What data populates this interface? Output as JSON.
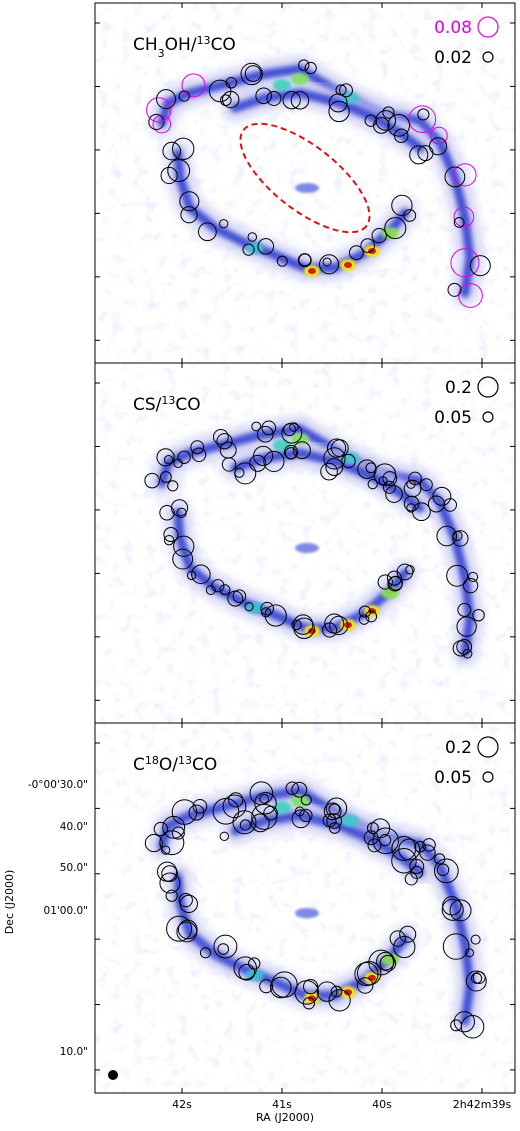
{
  "chart_data": {
    "type": "scatter",
    "panels": [
      {
        "id": "ch3oh",
        "title_parts": {
          "prefix": "CH",
          "sub": "3",
          "mid": "OH/",
          "sup": "13",
          "suffix": "CO"
        },
        "legend": [
          {
            "label": "0.08",
            "color": "#e000e0"
          },
          {
            "label": "0.02",
            "color": "#000000"
          }
        ],
        "show_ellipse": true
      },
      {
        "id": "cs",
        "title_parts": {
          "prefix": "CS/",
          "sub": "",
          "mid": "",
          "sup": "13",
          "suffix": "CO"
        },
        "legend": [
          {
            "label": "0.2",
            "color": "#000000"
          },
          {
            "label": "0.05",
            "color": "#000000"
          }
        ],
        "show_ellipse": false
      },
      {
        "id": "c18o",
        "title_parts": {
          "prefix": "C",
          "sup_pre": "18",
          "mid": "O/",
          "sup": "13",
          "suffix": "CO"
        },
        "legend": [
          {
            "label": "0.2",
            "color": "#000000"
          },
          {
            "label": "0.05",
            "color": "#000000"
          }
        ],
        "show_ellipse": false
      }
    ],
    "x_axis": {
      "label": "RA (J2000)",
      "ticks": [
        "42s",
        "41s",
        "40s",
        "2h42m39s"
      ]
    },
    "y_axis": {
      "label": "Dec (J2000)",
      "ticks": [
        "-0°00'30.0\"",
        "40.0\"",
        "50.0\"",
        "01'00.0\"",
        "10.0\""
      ]
    },
    "colors": {
      "ring_low": "#c8c8f0",
      "ring_mid": "#2a3ad0",
      "ring_hot": "#d02010",
      "ellipse": "#dd1111",
      "magenta": "#e000e0"
    }
  }
}
